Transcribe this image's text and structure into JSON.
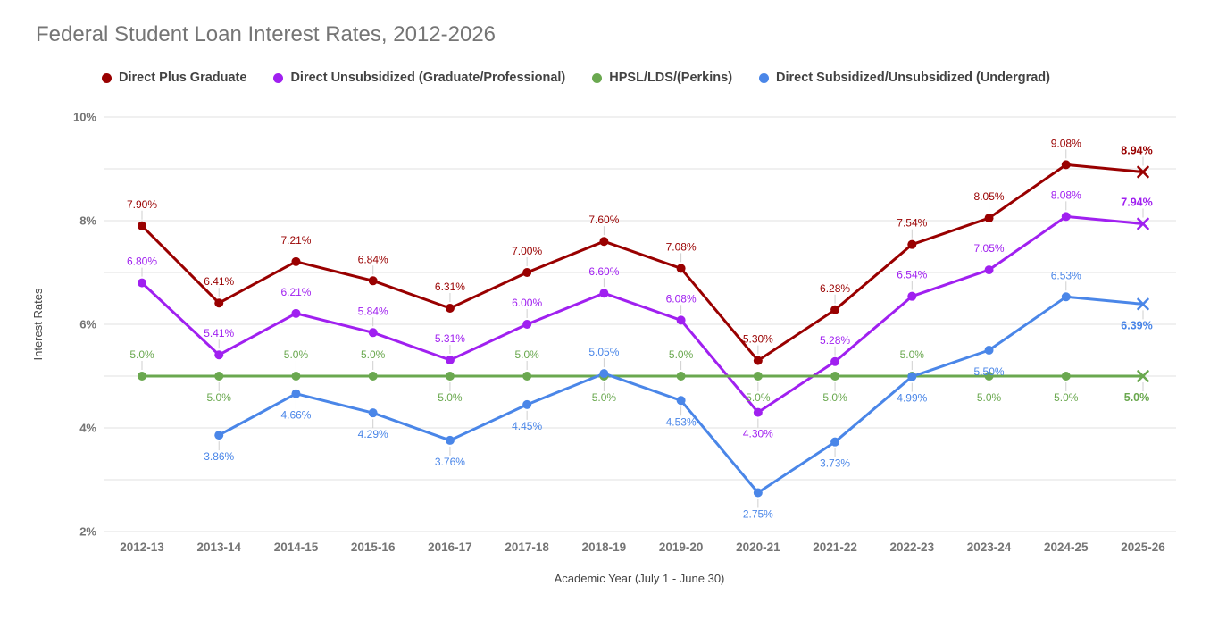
{
  "title": {
    "text": "Federal Student Loan Interest Rates, 2012-2026",
    "color": "#757575"
  },
  "legend": {
    "items": [
      {
        "label": "Direct Plus Graduate",
        "color": "#990000"
      },
      {
        "label": "Direct Unsubsidized (Graduate/Professional)",
        "color": "#a020f0"
      },
      {
        "label": "HPSL/LDS/(Perkins)",
        "color": "#6aa84f"
      },
      {
        "label": "Direct Subsidized/Unsubsidized (Undergrad)",
        "color": "#4a86e8"
      }
    ]
  },
  "axes": {
    "y_title": "Interest Rates",
    "x_title": "Academic Year (July 1 - June 30)",
    "y_ticks": [
      {
        "value": 10,
        "label": "10%"
      },
      {
        "value": 8,
        "label": "8%"
      },
      {
        "value": 6,
        "label": "6%"
      },
      {
        "value": 4,
        "label": "4%"
      },
      {
        "value": 2,
        "label": "2%"
      }
    ],
    "tick_color": "#757575",
    "grid_color": "#e0e0e0"
  },
  "chart_data": {
    "type": "line",
    "title": "Federal Student Loan Interest Rates, 2012-2026",
    "xlabel": "Academic Year (July 1 - June 30)",
    "ylabel": "Interest Rates",
    "ylim": [
      2,
      10
    ],
    "grid": true,
    "grid_step": 1,
    "legend_position": "top",
    "end_marker": "x",
    "end_labels_bold": true,
    "categories": [
      "2012-13",
      "2013-14",
      "2014-15",
      "2015-16",
      "2016-17",
      "2017-18",
      "2018-19",
      "2019-20",
      "2020-21",
      "2021-22",
      "2022-23",
      "2023-24",
      "2024-25",
      "2025-26"
    ],
    "series": [
      {
        "name": "Direct Plus Graduate",
        "color": "#990000",
        "values": [
          7.9,
          6.41,
          7.21,
          6.84,
          6.31,
          7.0,
          7.6,
          7.08,
          5.3,
          6.28,
          7.54,
          8.05,
          9.08,
          8.94
        ],
        "labels": [
          "7.90%",
          "6.41%",
          "7.21%",
          "6.84%",
          "6.31%",
          "7.00%",
          "7.60%",
          "7.08%",
          "5.30%",
          "6.28%",
          "7.54%",
          "8.05%",
          "9.08%",
          "8.94%"
        ],
        "label_sides": [
          "above",
          "above",
          "above",
          "above",
          "above",
          "above",
          "above",
          "above",
          "above",
          "above",
          "above",
          "above",
          "above",
          "above"
        ]
      },
      {
        "name": "Direct Unsubsidized (Graduate/Professional)",
        "color": "#a020f0",
        "values": [
          6.8,
          5.41,
          6.21,
          5.84,
          5.31,
          6.0,
          6.6,
          6.08,
          4.3,
          5.28,
          6.54,
          7.05,
          8.08,
          7.94
        ],
        "labels": [
          "6.80%",
          "5.41%",
          "6.21%",
          "5.84%",
          "5.31%",
          "6.00%",
          "6.60%",
          "6.08%",
          "4.30%",
          "5.28%",
          "6.54%",
          "7.05%",
          "8.08%",
          "7.94%"
        ],
        "label_sides": [
          "above",
          "above",
          "above",
          "above",
          "above",
          "above",
          "above",
          "above",
          "below",
          "above",
          "above",
          "above",
          "above",
          "above"
        ]
      },
      {
        "name": "HPSL/LDS/(Perkins)",
        "color": "#6aa84f",
        "values": [
          5.0,
          5.0,
          5.0,
          5.0,
          5.0,
          5.0,
          5.0,
          5.0,
          5.0,
          5.0,
          5.0,
          5.0,
          5.0,
          5.0
        ],
        "labels": [
          "5.0%",
          "5.0%",
          "5.0%",
          "5.0%",
          "5.0%",
          "5.0%",
          "5.0%",
          "5.0%",
          "5.0%",
          "5.0%",
          "5.0%",
          "5.0%",
          "5.0%",
          "5.0%"
        ],
        "label_sides": [
          "above",
          "below",
          "above",
          "above",
          "below",
          "above",
          "below",
          "above",
          "below",
          "below",
          "above",
          "below",
          "below",
          "below"
        ]
      },
      {
        "name": "Direct Subsidized/Unsubsidized (Undergrad)",
        "color": "#4a86e8",
        "values": [
          null,
          3.86,
          4.66,
          4.29,
          3.76,
          4.45,
          5.05,
          4.53,
          2.75,
          3.73,
          4.99,
          5.5,
          6.53,
          6.39
        ],
        "labels": [
          null,
          "3.86%",
          "4.66%",
          "4.29%",
          "3.76%",
          "4.45%",
          "5.05%",
          "4.53%",
          "2.75%",
          "3.73%",
          "4.99%",
          "5.50%",
          "6.53%",
          "6.39%"
        ],
        "label_sides": [
          null,
          "below",
          "below",
          "below",
          "below",
          "below",
          "above",
          "below",
          "below",
          "below",
          "below",
          "below",
          "above",
          "below"
        ]
      }
    ]
  }
}
